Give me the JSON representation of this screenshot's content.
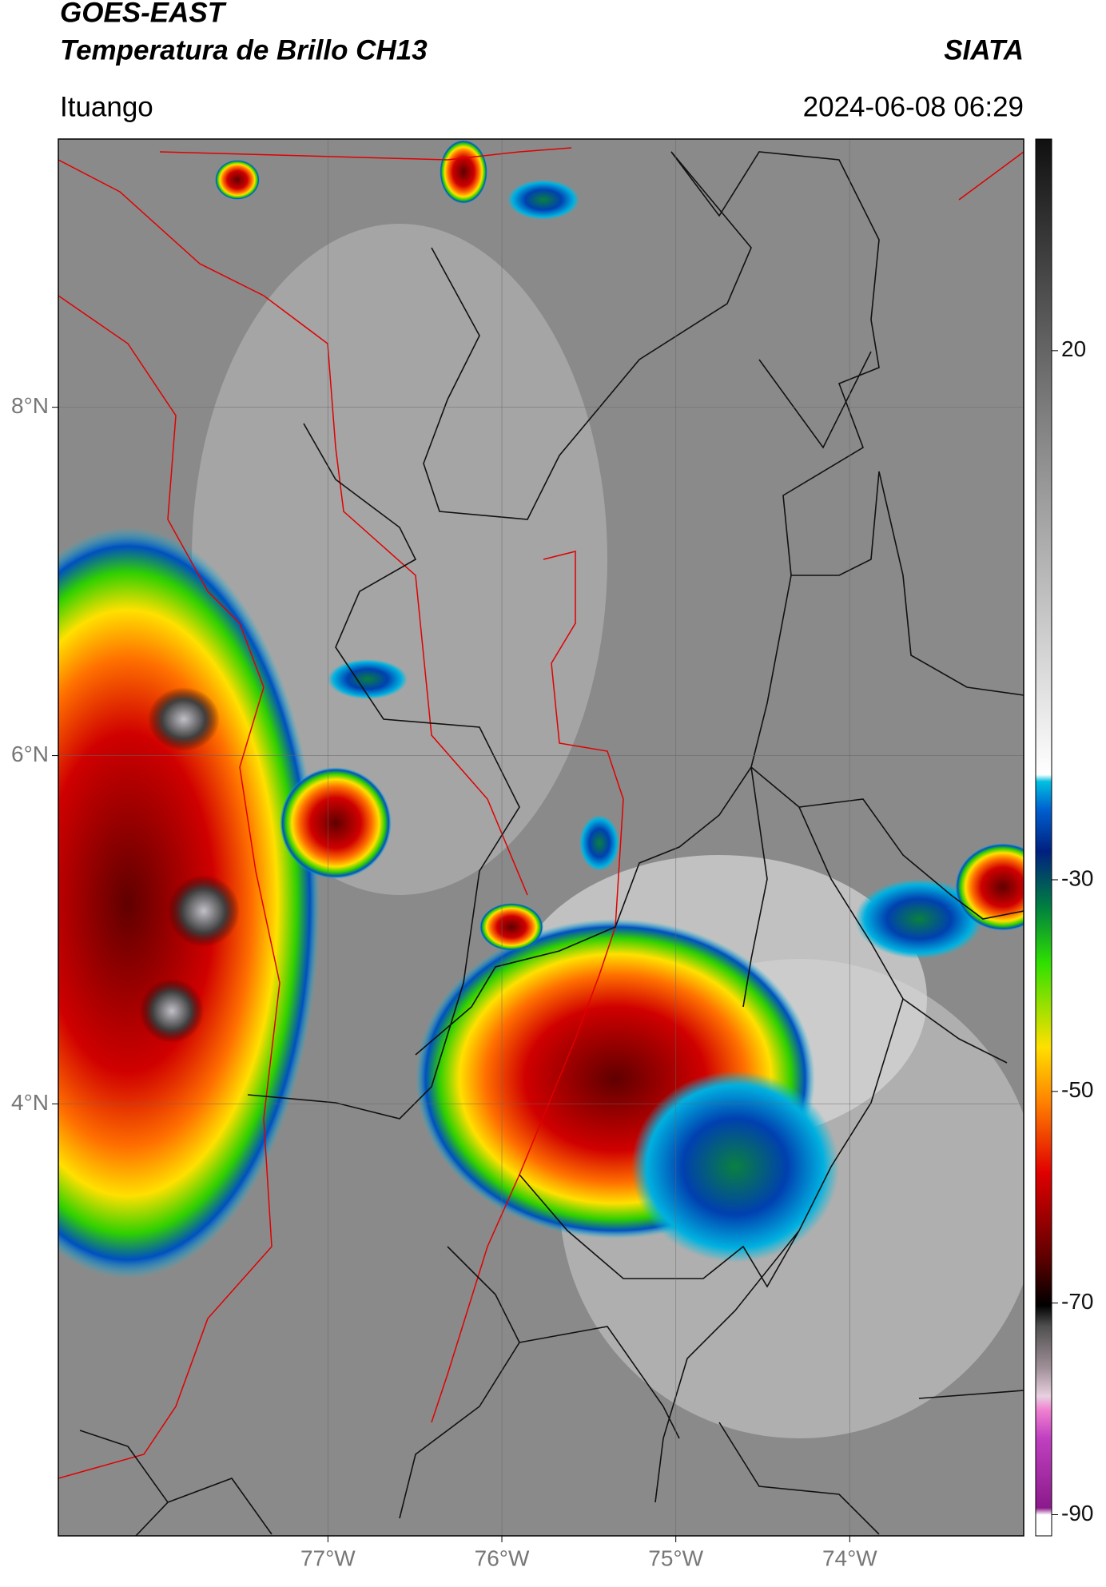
{
  "header": {
    "title": "GOES-EAST",
    "subtitle": "Temperatura de Brillo CH13",
    "source": "SIATA",
    "location": "Ituango",
    "datetime": "2024-06-08 06:29"
  },
  "map": {
    "lon_range": [
      -78.55,
      -73.0
    ],
    "lat_range": [
      1.52,
      9.54
    ],
    "lat_ticks": [
      {
        "value": 8,
        "label": "8°N"
      },
      {
        "value": 6,
        "label": "6°N"
      },
      {
        "value": 4,
        "label": "4°N"
      }
    ],
    "lon_ticks": [
      {
        "value": -77,
        "label": "77°W"
      },
      {
        "value": -76,
        "label": "76°W"
      },
      {
        "value": -75,
        "label": "75°W"
      },
      {
        "value": -74,
        "label": "74°W"
      }
    ],
    "grid": true
  },
  "colorbar": {
    "range": [
      -92,
      40
    ],
    "ticks": [
      20,
      -30,
      -50,
      -70,
      -90
    ]
  }
}
